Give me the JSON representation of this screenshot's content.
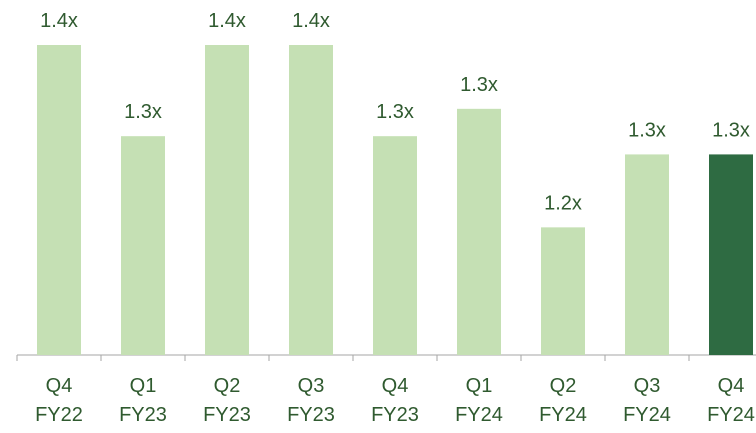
{
  "chart_data": {
    "type": "bar",
    "categories": [
      [
        "Q4",
        "FY22"
      ],
      [
        "Q1",
        "FY23"
      ],
      [
        "Q2",
        "FY23"
      ],
      [
        "Q3",
        "FY23"
      ],
      [
        "Q4",
        "FY23"
      ],
      [
        "Q1",
        "FY24"
      ],
      [
        "Q2",
        "FY24"
      ],
      [
        "Q3",
        "FY24"
      ],
      [
        "Q4",
        "FY24"
      ]
    ],
    "values": [
      1.4,
      1.3,
      1.4,
      1.4,
      1.3,
      1.33,
      1.2,
      1.28,
      1.28
    ],
    "value_labels": [
      "1.4x",
      "1.3x",
      "1.4x",
      "1.4x",
      "1.3x",
      "1.3x",
      "1.2x",
      "1.3x",
      "1.3x"
    ],
    "colors": [
      "#c5e0b4",
      "#c5e0b4",
      "#c5e0b4",
      "#c5e0b4",
      "#c5e0b4",
      "#c5e0b4",
      "#c5e0b4",
      "#c5e0b4",
      "#2e6b42"
    ],
    "ylim": [
      1.06,
      1.4
    ]
  }
}
